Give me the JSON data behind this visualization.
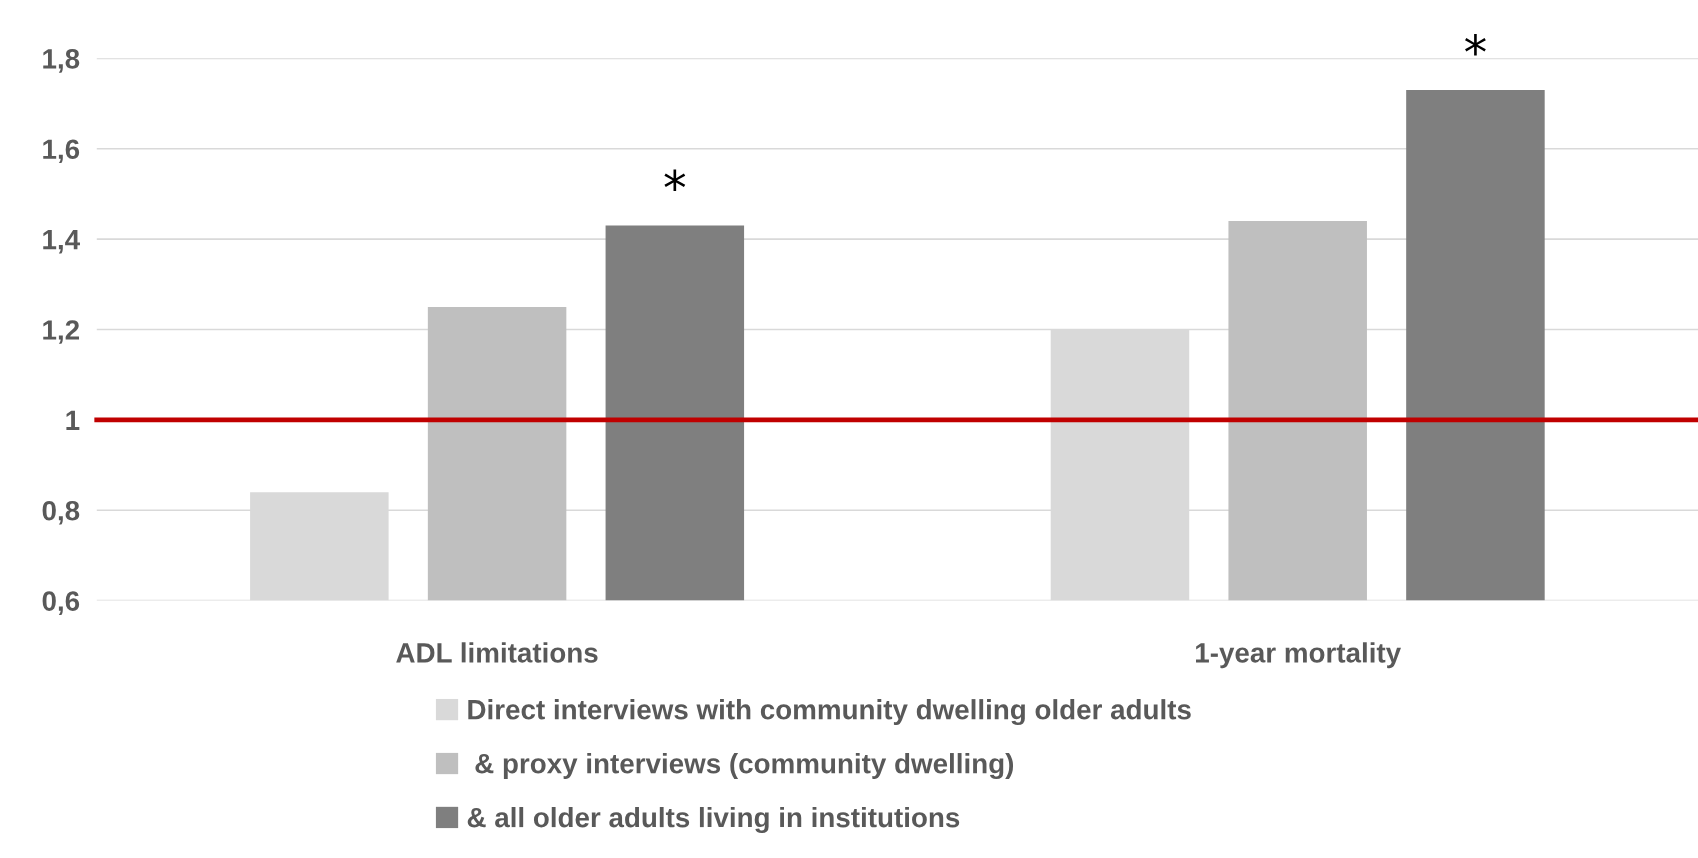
{
  "chart_data": {
    "type": "bar",
    "categories": [
      "ADL limitations",
      "1-year mortality"
    ],
    "series": [
      {
        "name": "Direct interviews with community dwelling older adults",
        "color": "#d9d9d9",
        "values": [
          0.84,
          1.2
        ]
      },
      {
        "name": " & proxy interviews (community dwelling)",
        "color": "#bfbfbf",
        "values": [
          1.25,
          1.44
        ]
      },
      {
        "name": "& all older adults living in institutions",
        "color": "#7f7f7f",
        "values": [
          1.43,
          1.73
        ]
      }
    ],
    "ylim": [
      0.6,
      1.8
    ],
    "yticks": [
      {
        "value": 0.6,
        "label": "0,6"
      },
      {
        "value": 0.8,
        "label": "0,8"
      },
      {
        "value": 1,
        "label": "1"
      },
      {
        "value": 1.2,
        "label": "1,2"
      },
      {
        "value": 1.4,
        "label": "1,4"
      },
      {
        "value": 1.6,
        "label": "1,6"
      },
      {
        "value": 1.8,
        "label": "1,8"
      }
    ],
    "grid": "y",
    "legend": "bottom",
    "ref_lines": [
      {
        "axis": "y",
        "value": 1,
        "color": "#c00000"
      }
    ],
    "annotations": [
      "*",
      "*"
    ]
  }
}
